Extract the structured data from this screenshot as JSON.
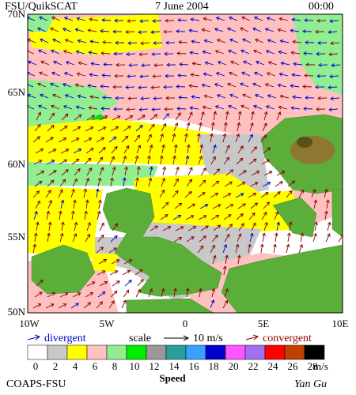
{
  "header": {
    "source": "FSU/QuikSCAT",
    "date": "7 June 2004",
    "time": "00:00"
  },
  "lat_labels": [
    "70N",
    "65N",
    "60N",
    "55N",
    "50N"
  ],
  "lon_labels": [
    "10W",
    "5W",
    "0",
    "5E",
    "10E"
  ],
  "legend": {
    "divergent": "divergent",
    "scale": "scale",
    "scale_value": "10 m/s",
    "convergent": "convergent"
  },
  "colorbar": {
    "colors": [
      "#ffffff",
      "#c8c8c8",
      "#ffff00",
      "#ffc0c0",
      "#90ee90",
      "#00ee00",
      "#999999",
      "#2a9d9d",
      "#3aa0ff",
      "#0000cc",
      "#ff55ff",
      "#a070f0",
      "#ff0000",
      "#c04000",
      "#000000"
    ],
    "labels": [
      "0",
      "2",
      "4",
      "6",
      "8",
      "10",
      "12",
      "14",
      "16",
      "18",
      "20",
      "22",
      "24",
      "26",
      "28"
    ],
    "unit": "m/s",
    "title": "Speed"
  },
  "footer": {
    "org": "COAPS-FSU",
    "author": "Yan Gu"
  }
}
